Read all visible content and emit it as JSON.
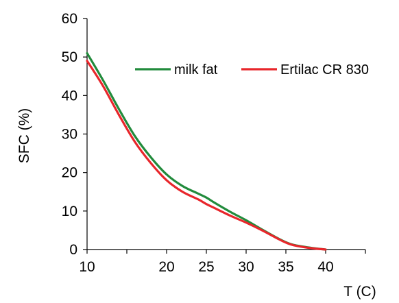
{
  "chart_data": {
    "type": "line",
    "title": "",
    "xlabel": "T (C)",
    "ylabel": "SFC (%)",
    "xlim": [
      10,
      45
    ],
    "ylim": [
      0,
      60
    ],
    "xticks": [
      10,
      20,
      25,
      30,
      35,
      40
    ],
    "yticks": [
      0,
      10,
      20,
      30,
      40,
      50,
      60
    ],
    "grid": false,
    "legend_position": "upper right, inside plot",
    "series": [
      {
        "name": "milk fat",
        "color": "#228B3C",
        "x": [
          10,
          12,
          14,
          16,
          18,
          20,
          22,
          24,
          25,
          26,
          28,
          30,
          32,
          34,
          35,
          36,
          38,
          40
        ],
        "y": [
          51,
          44,
          36.5,
          29.5,
          24,
          19.5,
          16.5,
          14.5,
          13.5,
          12.2,
          9.8,
          7.6,
          5.2,
          2.9,
          1.9,
          1.2,
          0.5,
          0
        ]
      },
      {
        "name": "Ertilac CR 830",
        "color": "#E8262B",
        "x": [
          10,
          12,
          14,
          16,
          18,
          20,
          22,
          24,
          25,
          26,
          28,
          30,
          32,
          34,
          35,
          36,
          38,
          40
        ],
        "y": [
          49,
          42.5,
          35,
          28,
          22.5,
          18,
          15,
          13,
          11.8,
          10.8,
          8.8,
          7,
          5,
          2.8,
          1.8,
          1.1,
          0.4,
          0
        ]
      }
    ]
  }
}
